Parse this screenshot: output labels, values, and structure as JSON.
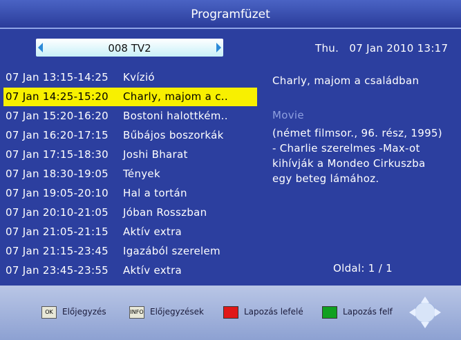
{
  "header": {
    "title": "Programfüzet"
  },
  "channel": "008 TV2",
  "datetime": "Thu.   07 Jan 2010 13:17",
  "list": {
    "selected": 1,
    "rows": [
      {
        "time": "07 Jan 13:15-14:25",
        "title": "Kvízió"
      },
      {
        "time": "07 Jan 14:25-15:20",
        "title": "Charly, majom a c.."
      },
      {
        "time": "07 Jan 15:20-16:20",
        "title": "Bostoni halottkém.."
      },
      {
        "time": "07 Jan 16:20-17:15",
        "title": "Bűbájos boszorkák"
      },
      {
        "time": "07 Jan 17:15-18:30",
        "title": "Joshi Bharat"
      },
      {
        "time": "07 Jan 18:30-19:05",
        "title": "Tények"
      },
      {
        "time": "07 Jan 19:05-20:10",
        "title": "Hal a tortán"
      },
      {
        "time": "07 Jan 20:10-21:05",
        "title": "Jóban Rosszban"
      },
      {
        "time": "07 Jan 21:05-21:15",
        "title": "Aktív extra"
      },
      {
        "time": "07 Jan 21:15-23:45",
        "title": "Igazából szerelem"
      },
      {
        "time": "07 Jan 23:45-23:55",
        "title": "Aktív extra"
      }
    ]
  },
  "detail": {
    "title": "Charly, majom a családban",
    "genre": "Movie",
    "description": [
      "(német filmsor., 96. rész, 1995)",
      "- Charlie szerelmes -Max-ot",
      "kihívják a Mondeo Cirkuszba",
      "egy beteg lámához."
    ]
  },
  "page": "Oldal: 1 / 1",
  "footer": [
    {
      "key": "OK",
      "text": "Előjegyzés"
    },
    {
      "key": "INFO",
      "text": "Előjegyzések"
    },
    {
      "text": "Lapozás lefelé"
    },
    {
      "text": "Lapozás felf"
    }
  ]
}
